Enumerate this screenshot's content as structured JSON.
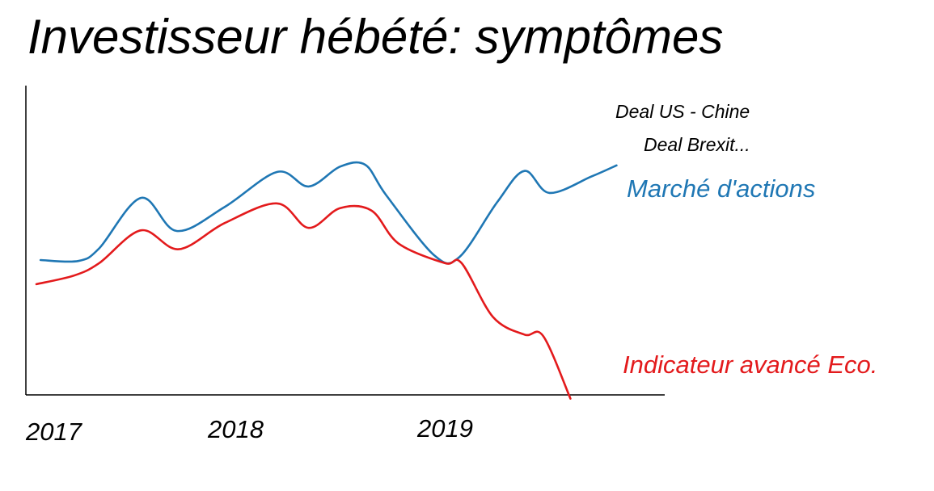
{
  "chart_data": {
    "type": "line",
    "title": "Investisseur hébété: symptômes",
    "xlabel": "",
    "ylabel": "",
    "grid": false,
    "legend": "inline labels at right end of series",
    "x_ticks": [
      "2017",
      "2018",
      "2019"
    ],
    "xlim": [
      2017.0,
      2020.05
    ],
    "ylim": [
      0,
      100
    ],
    "annotations": [
      "Deal US - Chine",
      "Deal Brexit..."
    ],
    "series": [
      {
        "name": "Marché d'actions",
        "color": "#1F77B4",
        "x": [
          2017.07,
          2017.25,
          2017.35,
          2017.55,
          2017.72,
          2017.95,
          2018.2,
          2018.35,
          2018.5,
          2018.62,
          2018.72,
          2018.95,
          2019.07,
          2019.25,
          2019.38,
          2019.5,
          2019.7,
          2019.82
        ],
        "y": [
          43.6,
          43.3,
          47.4,
          63.7,
          53.0,
          60.8,
          72.1,
          67.4,
          73.8,
          74.4,
          64.6,
          45.1,
          44.6,
          62.3,
          72.4,
          65.3,
          70.6,
          74.2
        ]
      },
      {
        "name": "Indicateur avancé Eco.",
        "color": "#E31A1C",
        "x": [
          2017.05,
          2017.23,
          2017.35,
          2017.55,
          2017.73,
          2017.95,
          2018.2,
          2018.35,
          2018.5,
          2018.65,
          2018.78,
          2019.0,
          2019.08,
          2019.23,
          2019.38,
          2019.47,
          2019.6
        ],
        "y": [
          35.8,
          38.6,
          42.6,
          53.2,
          47.1,
          55.6,
          61.9,
          54.0,
          60.4,
          59.6,
          48.9,
          42.6,
          42.6,
          25.2,
          19.5,
          19.0,
          -1.2
        ]
      }
    ]
  }
}
